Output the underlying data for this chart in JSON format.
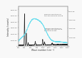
{
  "xlabel": "Wave number (cm⁻¹)",
  "ylabel": "Intensity (counts)",
  "xlim": [
    200,
    1800
  ],
  "bg_color": "#f8f8f8",
  "annotation1": "Raman spectrum of\nthe amorphous phase",
  "annotation2": "Raman spectrum of\ncrystalline substance\nEgyptian glass",
  "crystalline_color": "#222222",
  "amorphous_color": "#66ddee",
  "x_ticks": [
    200,
    400,
    600,
    800,
    1000,
    1200,
    1400,
    1600,
    1800
  ],
  "y_ticks_left": [
    "0",
    "1.0E+04",
    "2.0E+04",
    "3.0E+04",
    "4.0E+04",
    "5.0E+04",
    "6.0E+04"
  ],
  "y_ticks_right": [
    "0",
    "1.0E+05",
    "2.0E+05",
    "3.0E+05",
    "4.0E+05"
  ]
}
